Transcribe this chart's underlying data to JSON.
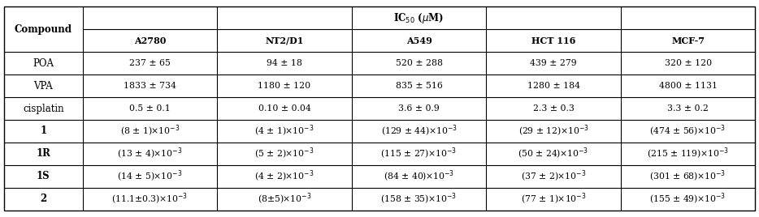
{
  "col_headers": [
    "A2780",
    "NT2/D1",
    "A549",
    "HCT 116",
    "MCF-7"
  ],
  "row_headers": [
    "Compound",
    "POA",
    "VPA",
    "cisplatin",
    "1",
    "1R",
    "1S",
    "2"
  ],
  "row_bold": [
    true,
    false,
    false,
    false,
    true,
    true,
    true,
    true
  ],
  "cells": [
    [
      "237 ± 65",
      "94 ± 18",
      "520 ± 288",
      "439 ± 279",
      "320 ± 120"
    ],
    [
      "1833 ± 734",
      "1180 ± 120",
      "835 ± 516",
      "1280 ± 184",
      "4800 ± 1131"
    ],
    [
      "0.5 ± 0.1",
      "0.10 ± 0.04",
      "3.6 ± 0.9",
      "2.3 ± 0.3",
      "3.3 ± 0.2"
    ],
    [
      "(8 ± 1)×10$^{-3}$",
      "(4 ± 1)×10$^{-3}$",
      "(129 ± 44)×10$^{-3}$",
      "(29 ± 12)×10$^{-3}$",
      "(474 ± 56)×10$^{-3}$"
    ],
    [
      "(13 ± 4)×10$^{-3}$",
      "(5 ± 2)×10$^{-3}$",
      "(115 ± 27)×10$^{-3}$",
      "(50 ± 24)×10$^{-3}$",
      "(215 ± 119)×10$^{-3}$"
    ],
    [
      "(14 ± 5)×10$^{-3}$",
      "(4 ± 2)×10$^{-3}$",
      "(84 ± 40)×10$^{-3}$",
      "(37 ± 2)×10$^{-3}$",
      "(301 ± 68)×10$^{-3}$"
    ],
    [
      "(11.1±0.3)×10$^{-3}$",
      "(8±5)×10$^{-3}$",
      "(158 ± 35)×10$^{-3}$",
      "(77 ± 1)×10$^{-3}$",
      "(155 ± 49)×10$^{-3}$"
    ]
  ],
  "background_color": "#ffffff",
  "line_color": "#000000",
  "text_color": "#000000",
  "fig_width": 9.34,
  "fig_height": 2.68,
  "dpi": 100
}
